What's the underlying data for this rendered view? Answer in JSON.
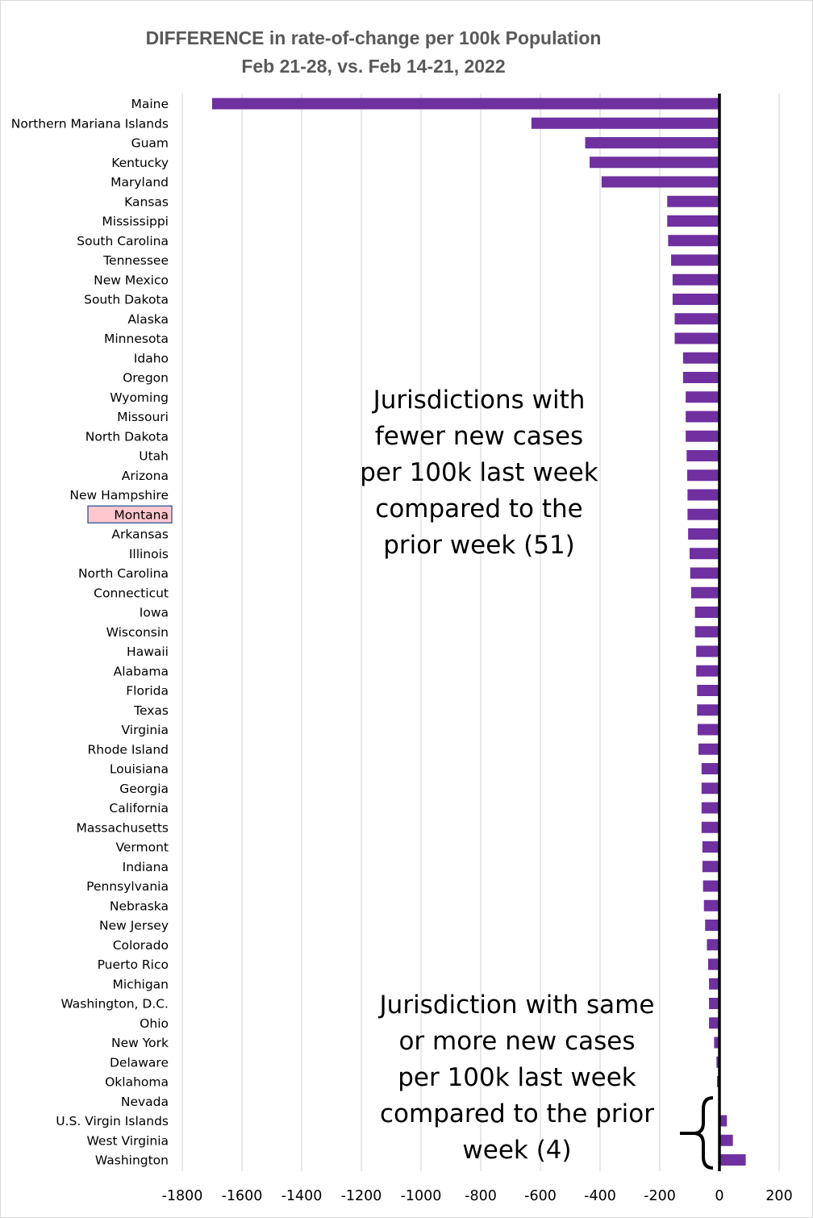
{
  "chart_data": {
    "type": "bar",
    "orientation": "horizontal",
    "title": [
      "DIFFERENCE in rate-of-change per 100k Population",
      "Feb 21-28, vs. Feb 14-21, 2022"
    ],
    "xlim": [
      -1800,
      200
    ],
    "xticks": [
      -1800,
      -1600,
      -1400,
      -1200,
      -1000,
      -800,
      -600,
      -400,
      -200,
      0,
      200
    ],
    "grid": "vertical",
    "bar_color": "#7030a0",
    "highlight": {
      "category": "Montana",
      "fill": "#ffc7ce",
      "border": "#2f5597"
    },
    "categories": [
      "Maine",
      "Northern Mariana Islands",
      "Guam",
      "Kentucky",
      "Maryland",
      "Kansas",
      "Mississippi",
      "South Carolina",
      "Tennessee",
      "New Mexico",
      "South Dakota",
      "Alaska",
      "Minnesota",
      "Idaho",
      "Oregon",
      "Wyoming",
      "Missouri",
      "North Dakota",
      "Utah",
      "Arizona",
      "New Hampshire",
      "Montana",
      "Arkansas",
      "Illinois",
      "North Carolina",
      "Connecticut",
      "Iowa",
      "Wisconsin",
      "Hawaii",
      "Alabama",
      "Florida",
      "Texas",
      "Virginia",
      "Rhode Island",
      "Louisiana",
      "Georgia",
      "California",
      "Massachusetts",
      "Vermont",
      "Indiana",
      "Pennsylvania",
      "Nebraska",
      "New Jersey",
      "Colorado",
      "Puerto Rico",
      "Michigan",
      "Washington, D.C.",
      "Ohio",
      "New York",
      "Delaware",
      "Oklahoma",
      "Nevada",
      "U.S. Virgin Islands",
      "West Virginia",
      "Washington"
    ],
    "values": [
      -1700,
      -630,
      -450,
      -435,
      -395,
      -175,
      -175,
      -172,
      -162,
      -157,
      -157,
      -150,
      -150,
      -122,
      -122,
      -113,
      -113,
      -113,
      -110,
      -108,
      -107,
      -107,
      -105,
      -100,
      -98,
      -95,
      -82,
      -82,
      -78,
      -78,
      -75,
      -75,
      -73,
      -70,
      -60,
      -60,
      -60,
      -60,
      -57,
      -57,
      -55,
      -52,
      -48,
      -42,
      -38,
      -35,
      -35,
      -35,
      -18,
      -10,
      -8,
      1,
      25,
      45,
      88
    ],
    "annotations": [
      {
        "lines": [
          "Jurisdictions with",
          "fewer new cases",
          "per 100k last week",
          "compared to the",
          "prior week (51)"
        ]
      },
      {
        "lines": [
          "Jurisdiction with same",
          "or more new cases",
          "per 100k last week",
          "compared to the prior",
          "week (4)"
        ]
      }
    ]
  }
}
